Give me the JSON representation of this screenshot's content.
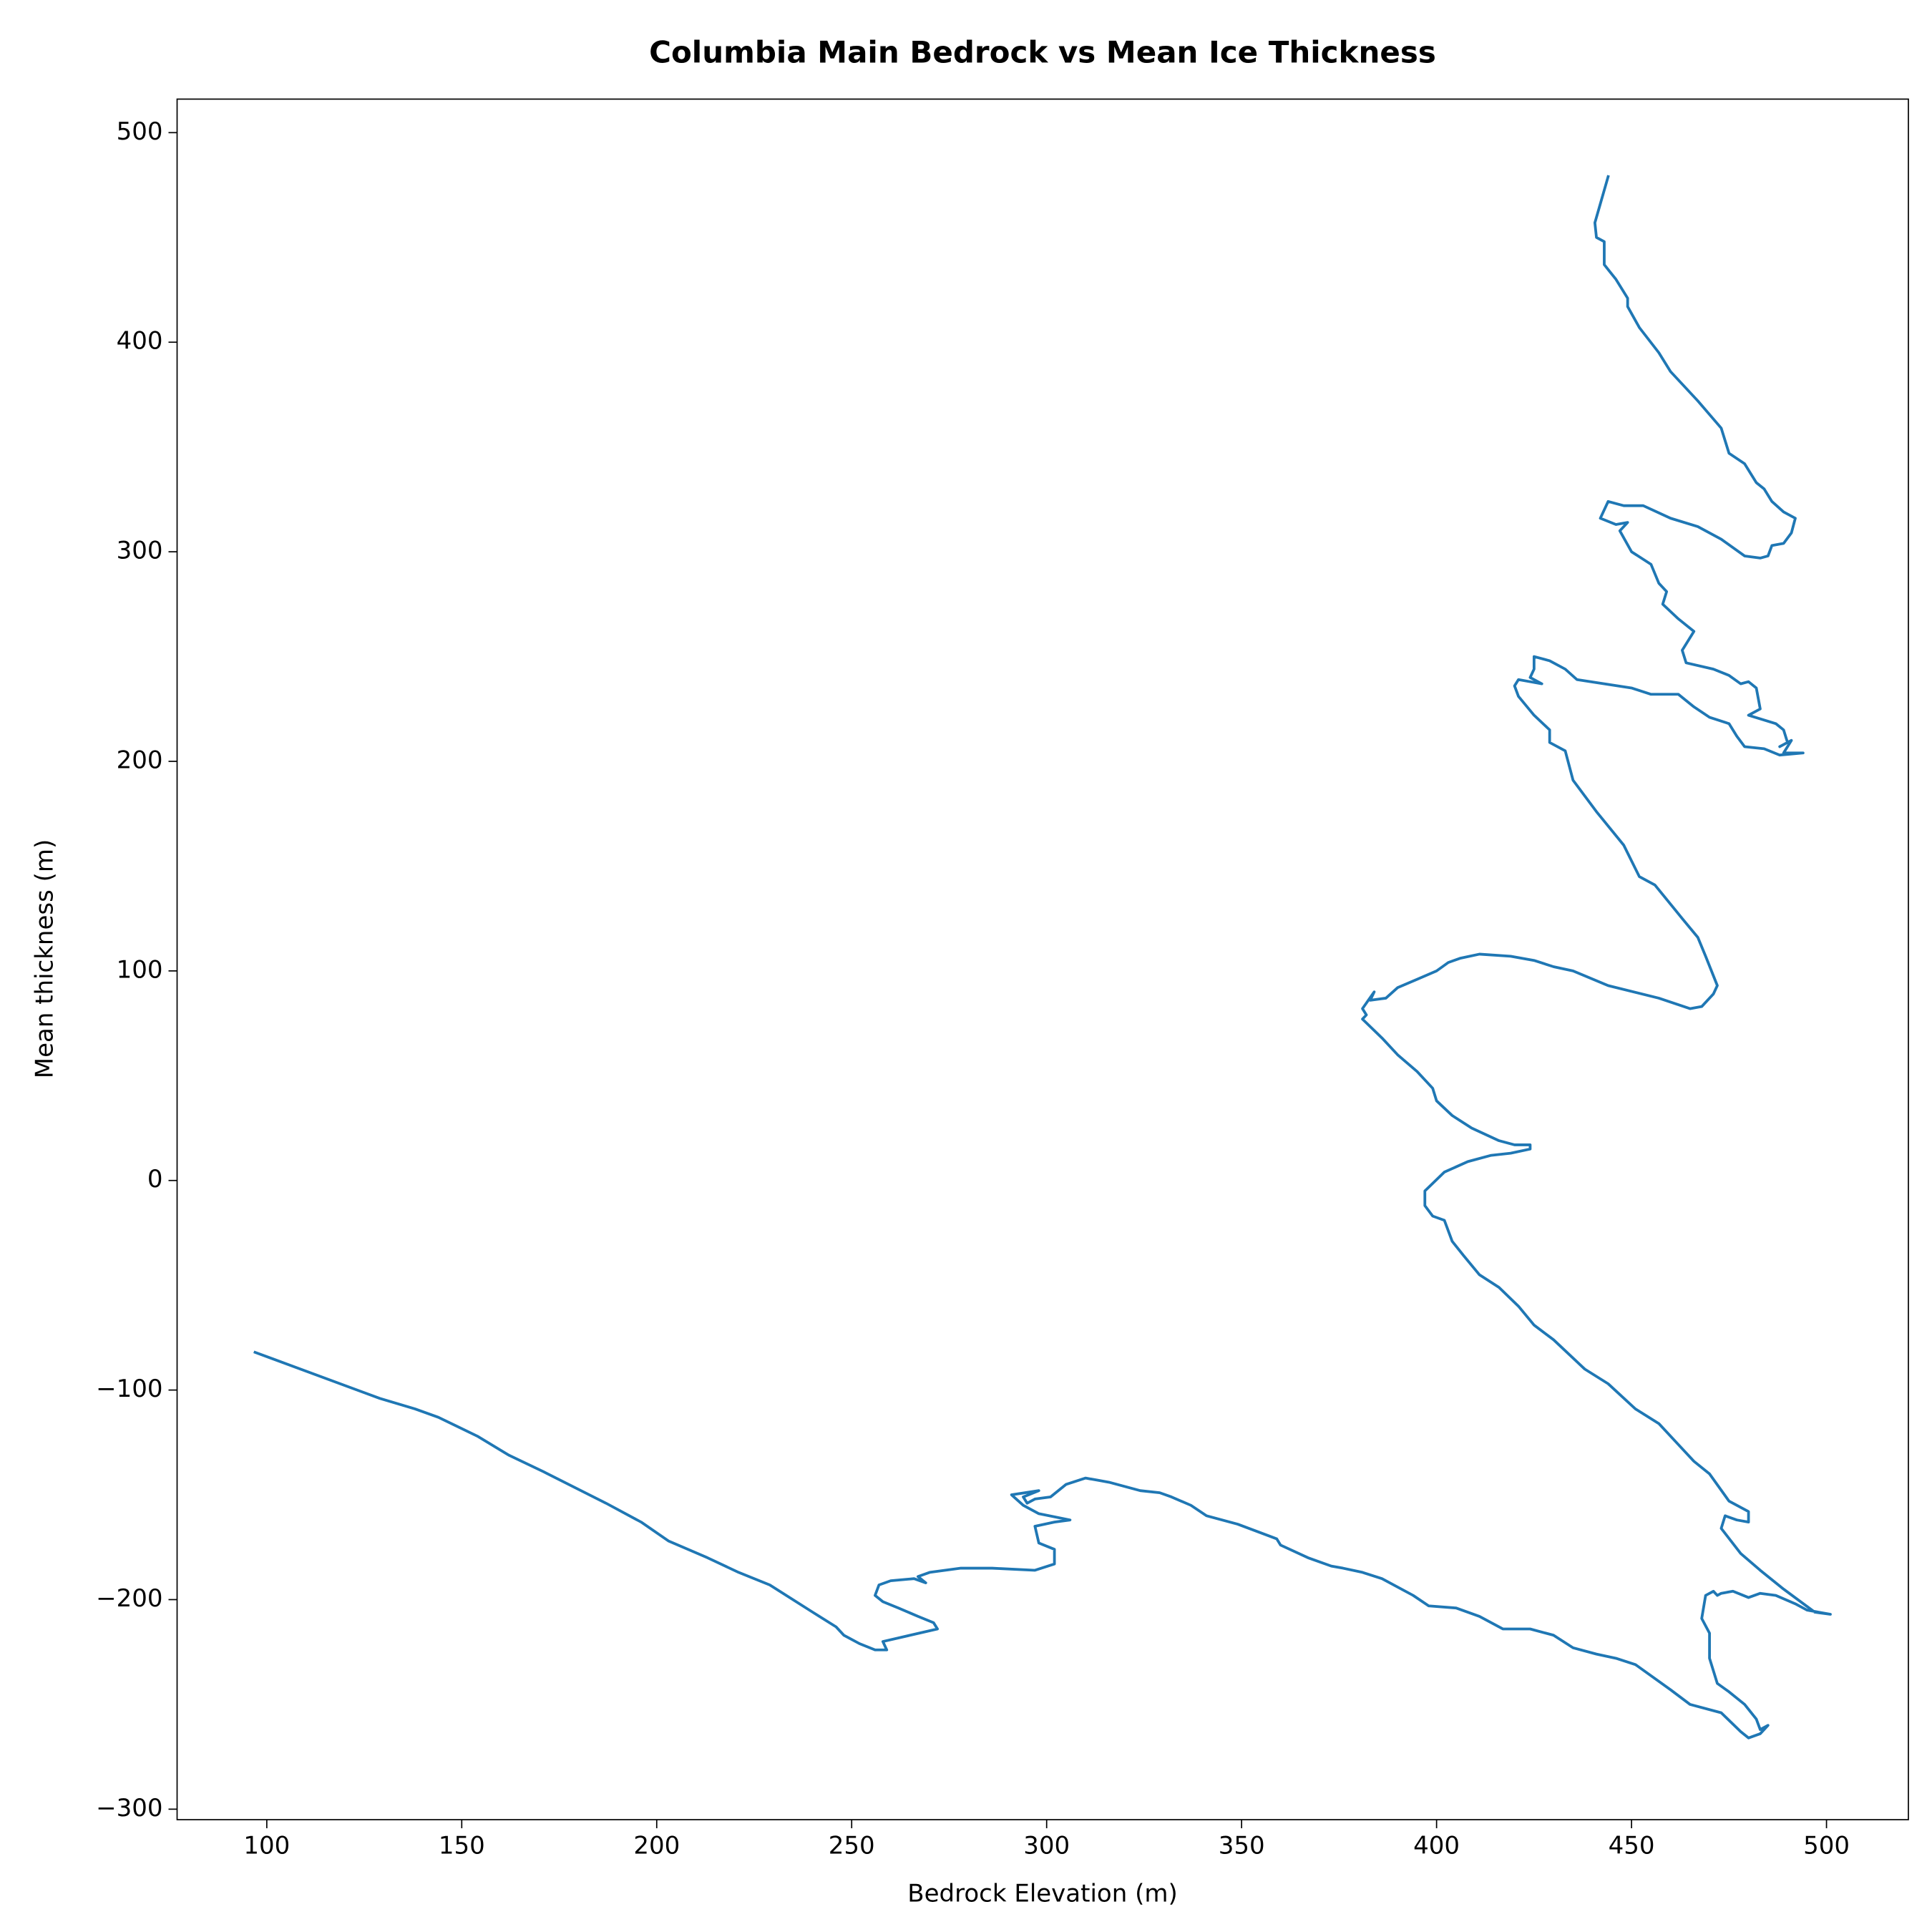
{
  "chart_data": {
    "type": "line",
    "title": "Columbia Main Bedrock vs Mean Ice Thickness",
    "xlabel": "Bedrock Elevation (m)",
    "ylabel": "Mean thickness (m)",
    "color": "#1f77b4",
    "xlim": [
      77,
      521
    ],
    "ylim": [
      -305,
      516
    ],
    "xticks": [
      100,
      150,
      200,
      250,
      300,
      350,
      400,
      450,
      500
    ],
    "yticks": [
      {
        "value": -300,
        "label": "−300"
      },
      {
        "value": -200,
        "label": "−200"
      },
      {
        "value": -100,
        "label": "−100"
      },
      0,
      100,
      200,
      300,
      400,
      500
    ],
    "x": [
      444,
      440.6,
      441,
      443,
      443,
      446,
      449,
      449,
      452,
      457,
      460,
      467,
      473,
      475,
      479,
      482,
      484,
      486,
      489,
      492,
      491,
      489,
      486,
      485,
      483,
      479,
      473,
      467,
      460,
      453,
      448,
      444,
      442,
      446,
      449,
      447,
      450,
      455,
      457,
      459,
      458,
      462,
      466,
      463,
      464,
      471,
      475,
      478,
      480,
      482,
      483,
      480,
      487,
      489,
      490,
      488,
      491,
      489,
      494,
      488,
      484,
      479,
      477,
      475,
      470,
      466,
      462,
      455,
      450,
      443,
      436,
      433,
      429,
      425,
      425,
      424,
      427,
      424,
      421,
      420,
      421,
      425,
      429,
      429,
      433,
      435,
      441,
      448,
      452,
      456,
      463,
      467,
      469,
      472,
      471,
      468,
      465,
      457,
      444,
      435,
      430,
      425,
      419,
      411,
      406,
      403,
      400,
      395,
      390,
      387,
      383,
      384,
      381,
      382,
      381,
      386,
      390,
      395,
      399,
      400,
      404,
      409,
      416,
      420,
      424,
      424,
      419,
      414,
      408,
      402,
      397,
      397,
      399,
      402,
      404,
      407,
      411,
      416,
      421,
      425,
      430,
      438,
      444,
      451,
      457,
      462,
      466,
      470,
      475,
      480,
      480,
      477,
      474,
      473,
      478,
      483,
      489,
      497,
      501,
      495,
      492,
      487,
      483,
      480,
      476,
      473,
      472,
      471,
      469,
      468,
      470,
      470,
      472,
      475,
      479,
      482,
      483,
      485,
      483,
      480,
      478,
      473,
      465,
      460,
      451,
      446,
      441,
      435,
      430,
      424,
      417,
      411,
      405,
      398,
      394,
      386,
      381,
      376,
      373,
      367,
      360,
      359,
      349,
      341,
      337,
      332,
      329,
      324,
      316,
      313,
      310,
      305,
      301,
      297,
      295,
      294,
      298,
      291,
      294,
      298,
      306,
      302,
      297,
      298,
      302,
      302,
      297,
      286,
      278,
      270,
      267,
      269,
      266,
      260,
      257,
      256,
      258,
      262,
      267,
      271,
      272,
      265,
      258,
      259,
      256,
      252,
      248,
      246,
      240,
      229,
      221,
      213,
      203,
      196,
      187,
      171,
      162,
      154,
      144,
      138,
      129,
      97
    ],
    "values": [
      479,
      457,
      450,
      448,
      437,
      430,
      421,
      417,
      407,
      395,
      386,
      372,
      359,
      347,
      342,
      333,
      330,
      324,
      319,
      316,
      309,
      304,
      303,
      298,
      297,
      298,
      306,
      312,
      316,
      322,
      322,
      324,
      316,
      313,
      314,
      310,
      300,
      294,
      285,
      281,
      275,
      268,
      262,
      253,
      247,
      244,
      241,
      237,
      238,
      235,
      225,
      222,
      218,
      215,
      209,
      207,
      210,
      204,
      204,
      203,
      206,
      207,
      212,
      218,
      221,
      226,
      232,
      232,
      235,
      237,
      239,
      244,
      248,
      250,
      244,
      240,
      237,
      238,
      239,
      236,
      231,
      222,
      215,
      209,
      205,
      191,
      176,
      160,
      145,
      141,
      125,
      116,
      107,
      93,
      89,
      83,
      82,
      87,
      93,
      100,
      102,
      105,
      107,
      108,
      106,
      104,
      100,
      96,
      92,
      87,
      86,
      90,
      82,
      79,
      77,
      68,
      60,
      52,
      44,
      38,
      31,
      25,
      19,
      17,
      17,
      15,
      13,
      12,
      9,
      4,
      -5,
      -12,
      -17,
      -19,
      -29,
      -36,
      -45,
      -51,
      -60,
      -69,
      -76,
      -90,
      -97,
      -109,
      -116,
      -126,
      -134,
      -140,
      -153,
      -158,
      -163,
      -162,
      -160,
      -166,
      -178,
      -186,
      -195,
      -206,
      -207,
      -205,
      -202,
      -198,
      -197,
      -199,
      -196,
      -197,
      -198,
      -196,
      -198,
      -209,
      -216,
      -228,
      -240,
      -244,
      -250,
      -257,
      -262,
      -260,
      -264,
      -266,
      -263,
      -254,
      -250,
      -243,
      -231,
      -228,
      -226,
      -223,
      -217,
      -214,
      -214,
      -208,
      -204,
      -203,
      -198,
      -190,
      -187,
      -185,
      -184,
      -180,
      -174,
      -171,
      -164,
      -160,
      -155,
      -151,
      -149,
      -148,
      -144,
      -143,
      -142,
      -145,
      -151,
      -152,
      -154,
      -151,
      -148,
      -150,
      -155,
      -159,
      -162,
      -163,
      -165,
      -173,
      -176,
      -183,
      -186,
      -185,
      -185,
      -187,
      -189,
      -192,
      -190,
      -191,
      -193,
      -198,
      -201,
      -204,
      -208,
      -211,
      -214,
      -217,
      -220,
      -224,
      -224,
      -221,
      -217,
      -213,
      -206,
      -193,
      -187,
      -180,
      -172,
      -163,
      -154,
      -139,
      -131,
      -122,
      -113,
      -109,
      -104,
      -82
    ]
  }
}
